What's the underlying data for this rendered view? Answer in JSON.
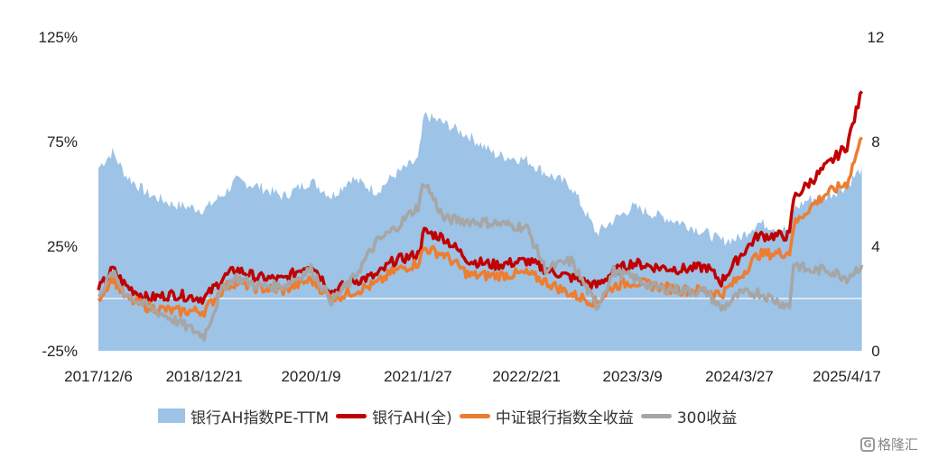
{
  "chart_data": {
    "type": "line",
    "left_axis": {
      "ylim": [
        -25,
        125
      ],
      "ticks": [
        "125%",
        "75%",
        "25%",
        "-25%"
      ],
      "tick_values": [
        125,
        75,
        25,
        -25
      ]
    },
    "right_axis": {
      "ylim": [
        0,
        12
      ],
      "ticks": [
        "12",
        "8",
        "4",
        "0"
      ],
      "tick_values": [
        12,
        8,
        4,
        0
      ]
    },
    "x_ticks": [
      "2017/12/6",
      "2018/12/21",
      "2020/1/9",
      "2021/1/27",
      "2022/2/21",
      "2023/3/9",
      "2024/3/27",
      "2025/4/17"
    ],
    "grid": false,
    "legend_position": "bottom",
    "series": [
      {
        "name": "银行AH指数PE-TTM",
        "kind": "area",
        "axis": "right",
        "color": "#9dc3e6",
        "points": [
          [
            "2017/12/6",
            7.0
          ],
          [
            "2018/1/26",
            7.6
          ],
          [
            "2018/3/15",
            6.7
          ],
          [
            "2018/6/1",
            6.0
          ],
          [
            "2018/9/1",
            5.6
          ],
          [
            "2018/12/21",
            5.4
          ],
          [
            "2019/3/1",
            6.0
          ],
          [
            "2019/4/15",
            6.5
          ],
          [
            "2019/7/1",
            6.3
          ],
          [
            "2019/10/1",
            5.9
          ],
          [
            "2020/1/9",
            6.5
          ],
          [
            "2020/3/23",
            5.9
          ],
          [
            "2020/6/1",
            6.6
          ],
          [
            "2020/9/1",
            6.1
          ],
          [
            "2020/11/1",
            6.7
          ],
          [
            "2021/1/27",
            7.3
          ],
          [
            "2021/2/19",
            9.0
          ],
          [
            "2021/5/1",
            8.7
          ],
          [
            "2021/8/1",
            8.2
          ],
          [
            "2021/11/1",
            7.5
          ],
          [
            "2022/2/21",
            7.3
          ],
          [
            "2022/5/1",
            6.8
          ],
          [
            "2022/8/1",
            6.3
          ],
          [
            "2022/10/31",
            4.5
          ],
          [
            "2023/1/1",
            5.0
          ],
          [
            "2023/3/9",
            5.5
          ],
          [
            "2023/6/1",
            5.2
          ],
          [
            "2023/9/1",
            4.9
          ],
          [
            "2023/12/1",
            4.5
          ],
          [
            "2024/1/22",
            4.2
          ],
          [
            "2024/3/27",
            4.3
          ],
          [
            "2024/6/1",
            4.9
          ],
          [
            "2024/9/23",
            4.6
          ],
          [
            "2024/10/8",
            5.4
          ],
          [
            "2024/12/1",
            5.8
          ],
          [
            "2025/2/1",
            5.9
          ],
          [
            "2025/4/17",
            6.3
          ],
          [
            "2025/6/10",
            7.0
          ]
        ]
      },
      {
        "name": "银行AH(全)",
        "kind": "line",
        "axis": "left",
        "color": "#c00000",
        "points": [
          [
            "2017/12/6",
            4
          ],
          [
            "2018/1/26",
            14
          ],
          [
            "2018/3/15",
            6
          ],
          [
            "2018/6/1",
            0
          ],
          [
            "2018/9/1",
            2
          ],
          [
            "2018/12/21",
            0
          ],
          [
            "2019/3/1",
            10
          ],
          [
            "2019/4/15",
            14
          ],
          [
            "2019/7/1",
            10
          ],
          [
            "2019/10/1",
            9
          ],
          [
            "2020/1/9",
            17
          ],
          [
            "2020/3/23",
            3
          ],
          [
            "2020/6/1",
            8
          ],
          [
            "2020/9/1",
            11
          ],
          [
            "2020/11/1",
            18
          ],
          [
            "2021/1/27",
            21
          ],
          [
            "2021/2/19",
            32
          ],
          [
            "2021/5/1",
            29
          ],
          [
            "2021/8/1",
            18
          ],
          [
            "2021/11/1",
            16
          ],
          [
            "2022/2/21",
            18
          ],
          [
            "2022/5/1",
            14
          ],
          [
            "2022/8/1",
            10
          ],
          [
            "2022/10/31",
            6
          ],
          [
            "2023/1/1",
            13
          ],
          [
            "2023/3/9",
            17
          ],
          [
            "2023/6/1",
            15
          ],
          [
            "2023/9/1",
            14
          ],
          [
            "2023/12/1",
            15
          ],
          [
            "2024/1/22",
            8
          ],
          [
            "2024/3/27",
            20
          ],
          [
            "2024/6/1",
            30
          ],
          [
            "2024/9/23",
            30
          ],
          [
            "2024/10/8",
            48
          ],
          [
            "2024/12/1",
            55
          ],
          [
            "2025/2/1",
            63
          ],
          [
            "2025/4/17",
            73
          ],
          [
            "2025/6/10",
            99
          ]
        ]
      },
      {
        "name": "中证银行指数全收益",
        "kind": "line",
        "axis": "left",
        "color": "#ed7d31",
        "points": [
          [
            "2017/12/6",
            0
          ],
          [
            "2018/1/26",
            10
          ],
          [
            "2018/3/15",
            0
          ],
          [
            "2018/6/1",
            -4
          ],
          [
            "2018/9/1",
            -6
          ],
          [
            "2018/12/21",
            -6
          ],
          [
            "2019/3/1",
            5
          ],
          [
            "2019/4/15",
            8
          ],
          [
            "2019/7/1",
            5
          ],
          [
            "2019/10/1",
            4
          ],
          [
            "2020/1/9",
            9
          ],
          [
            "2020/3/23",
            0
          ],
          [
            "2020/6/1",
            3
          ],
          [
            "2020/9/1",
            7
          ],
          [
            "2020/11/1",
            13
          ],
          [
            "2021/1/27",
            17
          ],
          [
            "2021/2/19",
            24
          ],
          [
            "2021/5/1",
            21
          ],
          [
            "2021/8/1",
            11
          ],
          [
            "2021/11/1",
            11
          ],
          [
            "2022/2/21",
            12
          ],
          [
            "2022/5/1",
            8
          ],
          [
            "2022/8/1",
            2
          ],
          [
            "2022/10/31",
            -2
          ],
          [
            "2023/1/1",
            6
          ],
          [
            "2023/3/9",
            8
          ],
          [
            "2023/6/1",
            6
          ],
          [
            "2023/9/1",
            4
          ],
          [
            "2023/12/1",
            4
          ],
          [
            "2024/1/22",
            2
          ],
          [
            "2024/3/27",
            10
          ],
          [
            "2024/6/1",
            21
          ],
          [
            "2024/9/23",
            22
          ],
          [
            "2024/10/8",
            35
          ],
          [
            "2024/12/1",
            43
          ],
          [
            "2025/2/1",
            50
          ],
          [
            "2025/4/17",
            55
          ],
          [
            "2025/6/10",
            77
          ]
        ]
      },
      {
        "name": "300收益",
        "kind": "line",
        "axis": "left",
        "color": "#a6a6a6",
        "points": [
          [
            "2017/12/6",
            2
          ],
          [
            "2018/1/26",
            12
          ],
          [
            "2018/3/15",
            2
          ],
          [
            "2018/6/1",
            -4
          ],
          [
            "2018/9/1",
            -10
          ],
          [
            "2018/12/21",
            -18
          ],
          [
            "2019/3/1",
            6
          ],
          [
            "2019/4/15",
            10
          ],
          [
            "2019/7/1",
            6
          ],
          [
            "2019/10/1",
            6
          ],
          [
            "2020/1/9",
            14
          ],
          [
            "2020/3/23",
            -1
          ],
          [
            "2020/6/1",
            8
          ],
          [
            "2020/9/1",
            27
          ],
          [
            "2020/11/1",
            33
          ],
          [
            "2021/1/27",
            44
          ],
          [
            "2021/2/19",
            56
          ],
          [
            "2021/5/1",
            38
          ],
          [
            "2021/8/1",
            37
          ],
          [
            "2021/11/1",
            36
          ],
          [
            "2022/2/21",
            34
          ],
          [
            "2022/5/1",
            14
          ],
          [
            "2022/8/1",
            18
          ],
          [
            "2022/10/31",
            -4
          ],
          [
            "2023/1/1",
            13
          ],
          [
            "2023/3/9",
            10
          ],
          [
            "2023/6/1",
            5
          ],
          [
            "2023/9/1",
            4
          ],
          [
            "2023/12/1",
            3
          ],
          [
            "2024/1/22",
            -5
          ],
          [
            "2024/3/27",
            2
          ],
          [
            "2024/6/1",
            3
          ],
          [
            "2024/9/23",
            -4
          ],
          [
            "2024/10/8",
            17
          ],
          [
            "2024/12/1",
            13
          ],
          [
            "2025/2/1",
            14
          ],
          [
            "2025/4/17",
            10
          ],
          [
            "2025/6/10",
            16
          ]
        ]
      }
    ]
  },
  "watermark": {
    "icon": "G",
    "text": "格隆汇"
  }
}
